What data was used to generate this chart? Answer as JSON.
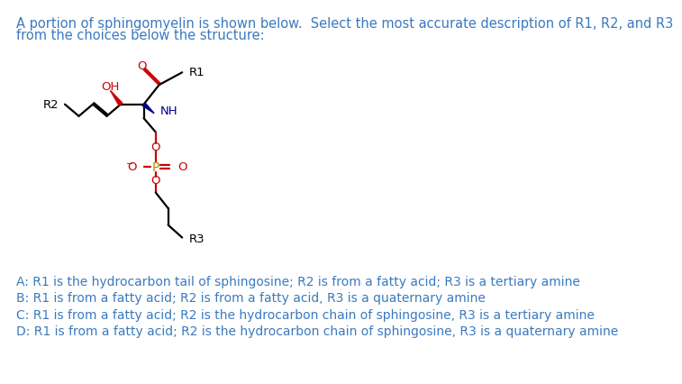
{
  "title_text": "A portion of sphingomyelin is shown below.  Select the most accurate description of R1, R2, and R3",
  "title_line2": "from the choices below the structure:",
  "title_color": "#3a7abf",
  "bg_color": "#ffffff",
  "answer_A": "A: R1 is the hydrocarbon tail of sphingosine; R2 is from a fatty acid; R3 is a tertiary amine",
  "answer_B": "B: R1 is from a fatty acid; R2 is from a fatty acid, R3 is a quaternary amine",
  "answer_C": "C: R1 is from a fatty acid; R2 is the hydrocarbon chain of sphingosine, R3 is a tertiary amine",
  "answer_D": "D: R1 is from a fatty acid; R2 is the hydrocarbon chain of sphingosine, R3 is a quaternary amine",
  "text_color": "#3a7abf",
  "red_color": "#cc0000",
  "blue_color": "#00008b",
  "gold_color": "#b8860b",
  "black_color": "#000000"
}
